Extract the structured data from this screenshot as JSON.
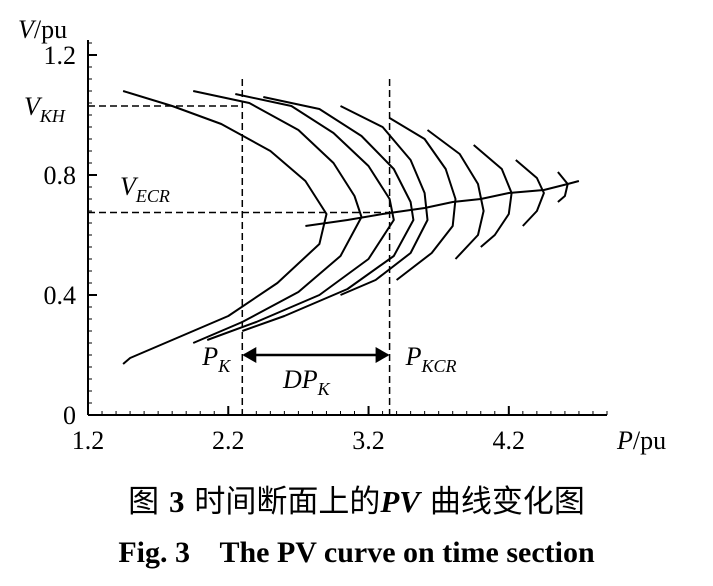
{
  "chart_data": {
    "type": "line",
    "title": "",
    "xlabel": "P/pu",
    "ylabel": "V/pu",
    "x_axis": {
      "var": "P",
      "unit": "/pu",
      "range": [
        1.2,
        4.9
      ],
      "ticks": [
        1.2,
        2.2,
        3.2,
        4.2
      ],
      "tick_labels": [
        "1.2",
        "2.2",
        "3.2",
        "4.2"
      ]
    },
    "y_axis": {
      "var": "V",
      "unit": "/pu",
      "range": [
        0,
        1.25
      ],
      "ticks": [
        0,
        0.4,
        0.8,
        1.2
      ],
      "tick_labels": [
        "0",
        "0.4",
        "0.8",
        "1.2"
      ]
    },
    "grid": false,
    "series": [
      {
        "points": [
          [
            1.45,
            1.08
          ],
          [
            1.8,
            1.03
          ],
          [
            2.15,
            0.97
          ],
          [
            2.5,
            0.88
          ],
          [
            2.75,
            0.78
          ],
          [
            2.9,
            0.67
          ],
          [
            2.85,
            0.57
          ],
          [
            2.55,
            0.44
          ],
          [
            2.2,
            0.33
          ],
          [
            1.8,
            0.25
          ],
          [
            1.5,
            0.19
          ],
          [
            1.45,
            0.17
          ]
        ]
      },
      {
        "points": [
          [
            1.95,
            1.08
          ],
          [
            2.35,
            1.04
          ],
          [
            2.7,
            0.95
          ],
          [
            2.95,
            0.84
          ],
          [
            3.1,
            0.73
          ],
          [
            3.15,
            0.66
          ],
          [
            3.0,
            0.53
          ],
          [
            2.7,
            0.41
          ],
          [
            2.3,
            0.31
          ],
          [
            1.95,
            0.24
          ]
        ]
      },
      {
        "points": [
          [
            2.25,
            1.07
          ],
          [
            2.65,
            1.03
          ],
          [
            2.95,
            0.94
          ],
          [
            3.2,
            0.83
          ],
          [
            3.35,
            0.72
          ],
          [
            3.38,
            0.65
          ],
          [
            3.2,
            0.52
          ],
          [
            2.85,
            0.4
          ],
          [
            2.4,
            0.31
          ],
          [
            2.05,
            0.25
          ]
        ]
      },
      {
        "points": [
          [
            2.45,
            1.06
          ],
          [
            2.85,
            1.02
          ],
          [
            3.15,
            0.93
          ],
          [
            3.38,
            0.82
          ],
          [
            3.5,
            0.71
          ],
          [
            3.52,
            0.65
          ],
          [
            3.38,
            0.53
          ],
          [
            3.05,
            0.42
          ],
          [
            2.6,
            0.33
          ],
          [
            2.3,
            0.28
          ]
        ]
      },
      {
        "points": [
          [
            3.0,
            1.03
          ],
          [
            3.3,
            0.96
          ],
          [
            3.5,
            0.85
          ],
          [
            3.6,
            0.74
          ],
          [
            3.62,
            0.65
          ],
          [
            3.5,
            0.54
          ],
          [
            3.25,
            0.45
          ],
          [
            3.0,
            0.4
          ]
        ]
      },
      {
        "points": [
          [
            3.35,
            0.99
          ],
          [
            3.6,
            0.92
          ],
          [
            3.75,
            0.82
          ],
          [
            3.82,
            0.72
          ],
          [
            3.8,
            0.63
          ],
          [
            3.65,
            0.54
          ],
          [
            3.4,
            0.45
          ]
        ]
      },
      {
        "points": [
          [
            3.62,
            0.95
          ],
          [
            3.85,
            0.87
          ],
          [
            3.98,
            0.77
          ],
          [
            4.02,
            0.68
          ],
          [
            3.98,
            0.6
          ],
          [
            3.82,
            0.52
          ]
        ]
      },
      {
        "points": [
          [
            3.95,
            0.9
          ],
          [
            4.15,
            0.82
          ],
          [
            4.22,
            0.74
          ],
          [
            4.2,
            0.67
          ],
          [
            4.1,
            0.6
          ],
          [
            4.0,
            0.56
          ]
        ]
      },
      {
        "points": [
          [
            4.25,
            0.85
          ],
          [
            4.4,
            0.79
          ],
          [
            4.45,
            0.74
          ],
          [
            4.4,
            0.68
          ],
          [
            4.3,
            0.63
          ]
        ]
      },
      {
        "points": [
          [
            4.55,
            0.81
          ],
          [
            4.62,
            0.77
          ],
          [
            4.6,
            0.73
          ],
          [
            4.55,
            0.71
          ]
        ]
      }
    ],
    "critical_locus": [
      [
        2.75,
        0.63
      ],
      [
        3.05,
        0.65
      ],
      [
        3.3,
        0.67
      ],
      [
        3.6,
        0.69
      ],
      [
        3.8,
        0.71
      ],
      [
        4.0,
        0.72
      ],
      [
        4.2,
        0.74
      ],
      [
        4.45,
        0.75
      ],
      [
        4.62,
        0.77
      ],
      [
        4.7,
        0.78
      ]
    ],
    "reference_lines": [
      {
        "orientation": "horizontal",
        "value": 1.03,
        "x_end": 2.3,
        "label": "V_KH"
      },
      {
        "orientation": "horizontal",
        "value": 0.675,
        "x_end": 3.35,
        "label": "V_ECR"
      },
      {
        "orientation": "vertical",
        "value": 2.3,
        "label": "P_K"
      },
      {
        "orientation": "vertical",
        "value": 3.35,
        "label": "P_KCR"
      }
    ],
    "annotations": {
      "v_kh": {
        "main": "V",
        "sub": "KH"
      },
      "v_ecr": {
        "main": "V",
        "sub": "ECR"
      },
      "p_k": {
        "main": "P",
        "sub": "K"
      },
      "p_kcr": {
        "main": "P",
        "sub": "KCR"
      },
      "dp_k": {
        "main": "DP",
        "sub": "K",
        "from": 2.3,
        "to": 3.35,
        "y": 0.2
      }
    }
  },
  "caption": {
    "zh_fig": "图",
    "zh_num": "3",
    "zh_mid": "时间断面上的",
    "zh_pv": "PV",
    "zh_end": "曲线变化图",
    "en": "Fig. 3    The PV curve on time section"
  }
}
